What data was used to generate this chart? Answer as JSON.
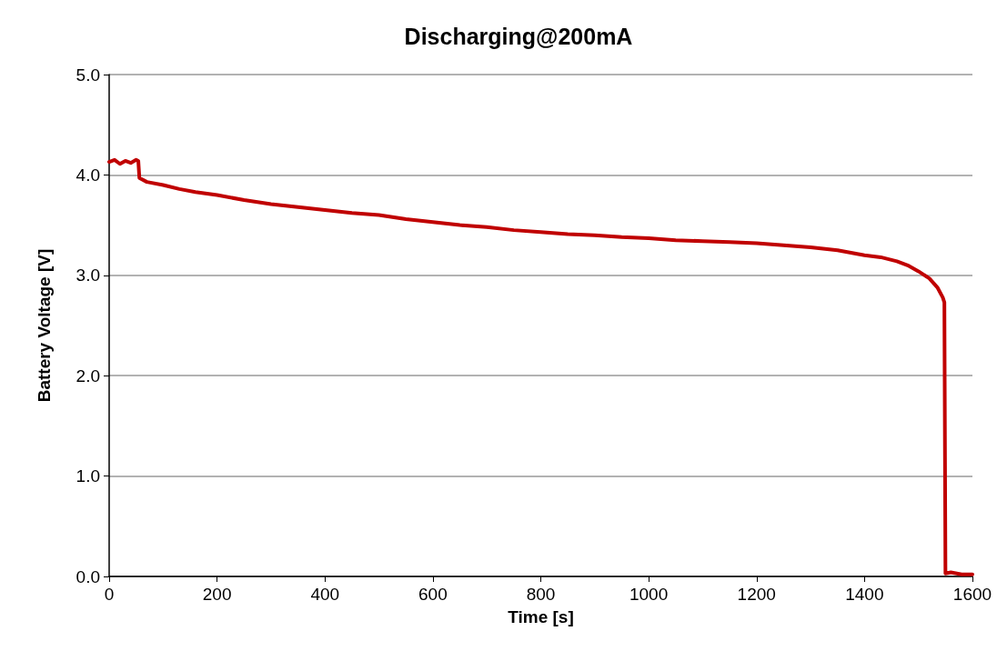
{
  "chart_data": {
    "type": "line",
    "title": "Discharging@200mA",
    "xlabel": "Time [s]",
    "ylabel": "Battery Voltage [V]",
    "xlim": [
      0,
      1600
    ],
    "xticks": [
      0,
      200,
      400,
      600,
      800,
      1000,
      1200,
      1400,
      1600
    ],
    "ylim": [
      0,
      5
    ],
    "yticks": [
      {
        "value": 0,
        "label": "0.0"
      },
      {
        "value": 1,
        "label": "1.0"
      },
      {
        "value": 2,
        "label": "2.0"
      },
      {
        "value": 3,
        "label": "3.0"
      },
      {
        "value": 4,
        "label": "4.0"
      },
      {
        "value": 5,
        "label": "5.0"
      }
    ],
    "grid": "y",
    "marker": "none",
    "line_style": "solid",
    "series": [
      {
        "color": "#c00000",
        "x": [
          0,
          10,
          20,
          30,
          40,
          50,
          54,
          56,
          70,
          100,
          130,
          160,
          200,
          250,
          300,
          350,
          400,
          450,
          500,
          550,
          600,
          650,
          700,
          750,
          800,
          850,
          900,
          950,
          1000,
          1050,
          1100,
          1150,
          1200,
          1250,
          1300,
          1350,
          1400,
          1430,
          1460,
          1480,
          1500,
          1520,
          1535,
          1545,
          1548,
          1550,
          1560,
          1580,
          1600
        ],
        "values": [
          4.13,
          4.15,
          4.11,
          4.14,
          4.12,
          4.15,
          4.14,
          3.97,
          3.93,
          3.9,
          3.86,
          3.83,
          3.8,
          3.75,
          3.71,
          3.68,
          3.65,
          3.62,
          3.6,
          3.56,
          3.53,
          3.5,
          3.48,
          3.45,
          3.43,
          3.41,
          3.4,
          3.38,
          3.37,
          3.35,
          3.34,
          3.33,
          3.32,
          3.3,
          3.28,
          3.25,
          3.2,
          3.18,
          3.14,
          3.1,
          3.04,
          2.97,
          2.88,
          2.78,
          2.73,
          0.03,
          0.04,
          0.02,
          0.02
        ]
      }
    ]
  }
}
